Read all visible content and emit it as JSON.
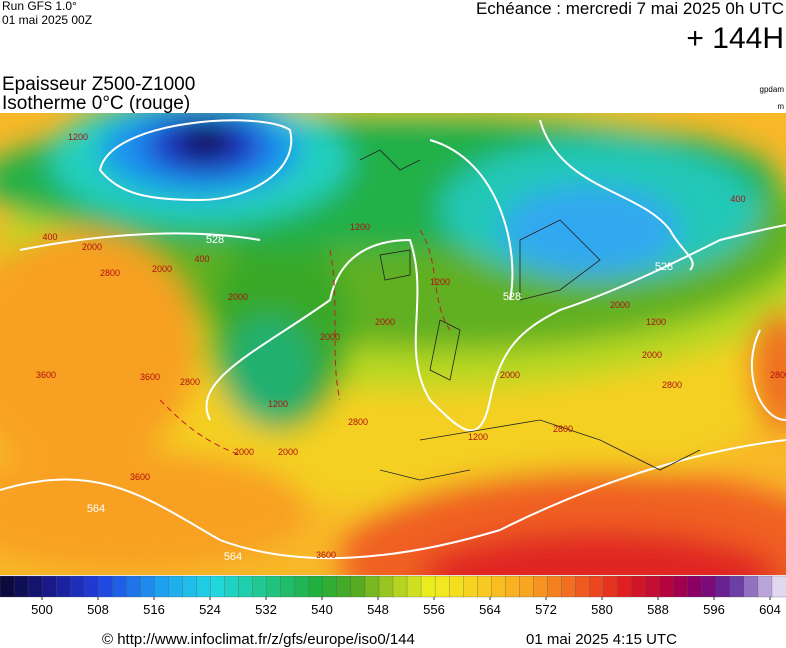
{
  "header": {
    "run": "Run GFS 1.0°",
    "run_date": "01 mai 2025 00Z",
    "echeance": "Echéance : mercredi 7 mai 2025 0h UTC",
    "lead": "+ 144H"
  },
  "title": {
    "line1": "Epaisseur Z500-Z1000",
    "line2": "Isotherme 0°C (rouge)"
  },
  "units": {
    "top": "gpdam",
    "bottom": "m"
  },
  "colorbar": {
    "ticks": [
      500,
      508,
      516,
      524,
      532,
      540,
      548,
      556,
      564,
      572,
      580,
      588,
      596,
      604
    ]
  },
  "contour_labels": {
    "thickness": [
      "528",
      "528",
      "528",
      "564",
      "564"
    ],
    "isotherm": [
      "1200",
      "400",
      "2000",
      "2800",
      "2000",
      "400",
      "2000",
      "2000",
      "1200",
      "1200",
      "2000",
      "2000",
      "2800",
      "3600",
      "2800",
      "3600",
      "1200",
      "2000",
      "2800",
      "2800",
      "3600",
      "3600",
      "1200",
      "2000",
      "2000",
      "400",
      "1200",
      "2000",
      "2800"
    ]
  },
  "footer": {
    "url": "© http://www.infoclimat.fr/z/gfs/europe/iso0/144",
    "date": "01 mai 2025  4:15 UTC"
  }
}
